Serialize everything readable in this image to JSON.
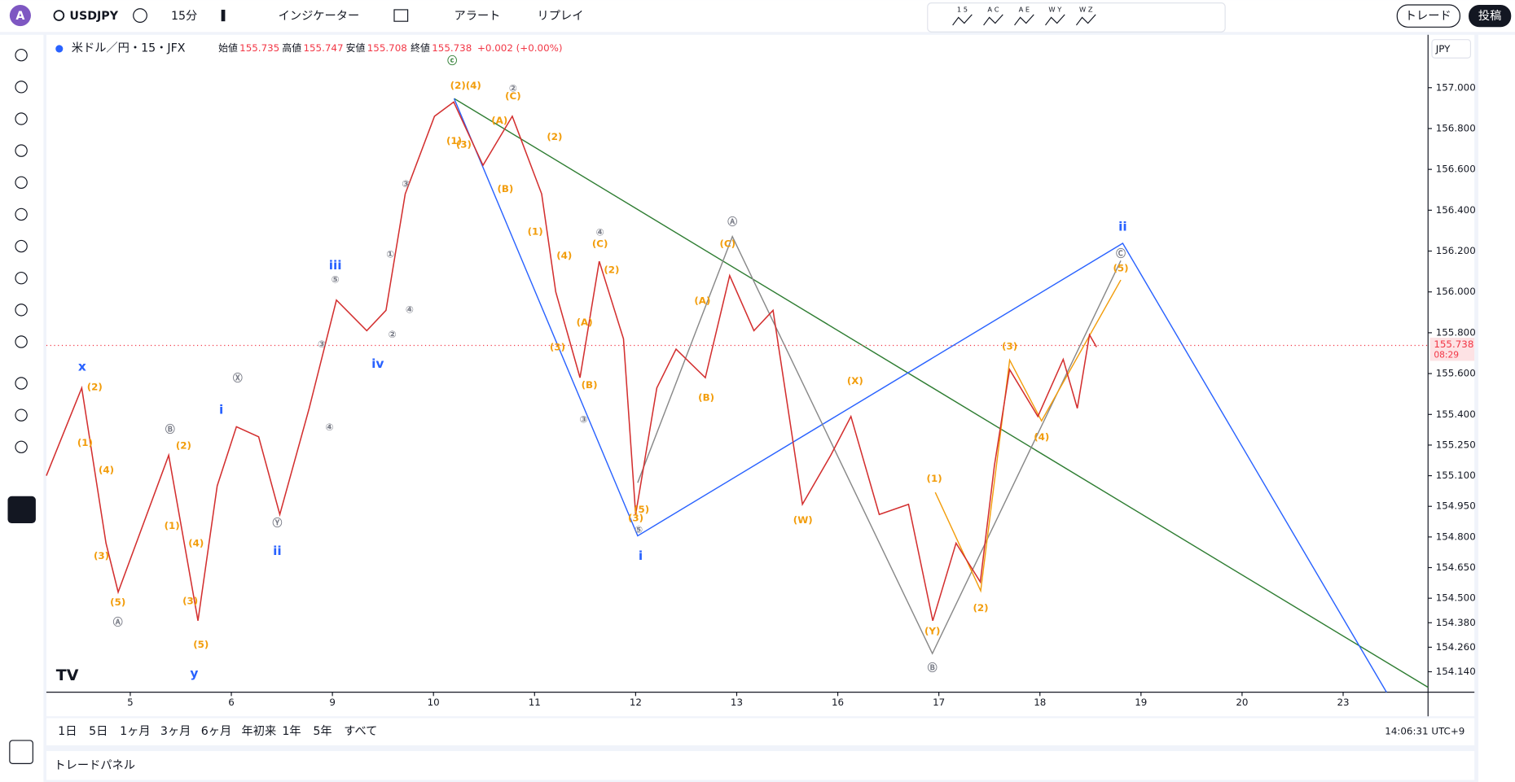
{
  "header": {
    "symbol": "USDJPY",
    "interval": "15分",
    "indicators": "インジケーター",
    "alert": "アラート",
    "replay": "リプレイ",
    "trade": "トレード",
    "publish": "投稿",
    "avatar": "A"
  },
  "legend": {
    "name": "米ドル／円・15・JFX",
    "open_label": "始値",
    "open": "155.735",
    "high_label": "高値",
    "high": "155.747",
    "low_label": "安値",
    "low": "155.708",
    "close_label": "終値",
    "close": "155.738",
    "change": "+0.002 (+0.00%)"
  },
  "drawing_tools": [
    "1 5",
    "A C",
    "A E",
    "W Y",
    "W Z"
  ],
  "chart_data": {
    "type": "line",
    "color": "#d32f2f",
    "x": [
      -0.83,
      -0.48,
      -0.24,
      -0.12,
      0.38,
      0.67,
      0.86,
      1.05,
      1.27,
      1.48,
      1.77,
      2.04,
      2.34,
      2.53,
      2.72,
      3.01,
      3.2,
      3.49,
      3.78,
      4.07,
      4.21,
      4.45,
      4.64,
      4.88,
      5.0,
      5.21,
      5.4,
      5.69,
      5.93,
      6.17,
      6.36,
      6.55,
      6.65,
      6.93,
      7.13,
      7.41,
      7.7,
      7.94,
      8.17,
      8.41,
      8.55,
      8.7,
      8.98,
      9.23,
      9.37,
      9.49,
      9.56
    ],
    "values": [
      155.1,
      155.53,
      154.77,
      154.53,
      155.2,
      154.39,
      155.05,
      155.34,
      155.29,
      154.91,
      155.43,
      155.96,
      155.81,
      155.91,
      156.48,
      156.86,
      156.93,
      156.62,
      156.86,
      156.48,
      156.0,
      155.58,
      156.15,
      155.77,
      154.91,
      155.53,
      155.72,
      155.58,
      156.08,
      155.81,
      155.91,
      155.29,
      154.96,
      155.2,
      155.39,
      154.91,
      154.96,
      154.39,
      154.77,
      154.58,
      155.15,
      155.62,
      155.39,
      155.67,
      155.43,
      155.79,
      155.73
    ],
    "xlim": [
      -0.83,
      12.84
    ],
    "xticks": [
      {
        "value": 0,
        "label": "5"
      },
      {
        "value": 1,
        "label": "6"
      },
      {
        "value": 2,
        "label": "9"
      },
      {
        "value": 3,
        "label": "10"
      },
      {
        "value": 4,
        "label": "11"
      },
      {
        "value": 5,
        "label": "12"
      },
      {
        "value": 6,
        "label": "13"
      },
      {
        "value": 7,
        "label": "16"
      },
      {
        "value": 8,
        "label": "17"
      },
      {
        "value": 9,
        "label": "18"
      },
      {
        "value": 10,
        "label": "19"
      },
      {
        "value": 11,
        "label": "20"
      },
      {
        "value": 12,
        "label": "23"
      }
    ],
    "ylim": [
      154.04,
      157.24
    ],
    "yticks": [
      {
        "value": 157,
        "label": "157.000"
      },
      {
        "value": 156.8,
        "label": "156.800"
      },
      {
        "value": 156.6,
        "label": "156.600"
      },
      {
        "value": 156.4,
        "label": "156.400"
      },
      {
        "value": 156.2,
        "label": "156.200"
      },
      {
        "value": 156,
        "label": "156.000"
      },
      {
        "value": 155.8,
        "label": "155.800"
      },
      {
        "value": 155.6,
        "label": "155.600"
      },
      {
        "value": 155.4,
        "label": "155.400"
      },
      {
        "value": 155.25,
        "label": "155.250"
      },
      {
        "value": 155.1,
        "label": "155.100"
      },
      {
        "value": 154.95,
        "label": "154.950"
      },
      {
        "value": 154.8,
        "label": "154.800"
      },
      {
        "value": 154.65,
        "label": "154.650"
      },
      {
        "value": 154.5,
        "label": "154.500"
      },
      {
        "value": 154.38,
        "label": "154.380"
      },
      {
        "value": 154.26,
        "label": "154.260"
      },
      {
        "value": 154.14,
        "label": "154.140"
      }
    ],
    "current_price": {
      "value": 155.738,
      "label": "155.738"
    },
    "countdown": "08:29",
    "currency": "JPY",
    "annotations": [
      "x",
      "(2)",
      "(1)",
      "(4)",
      "(3)",
      "(5)",
      "Ⓐ",
      "Ⓑ",
      "(2)",
      "(1)",
      "i",
      "Ⓧ",
      "(4)",
      "(3)",
      "(5)",
      "y",
      "ii",
      "Ⓨ",
      "③",
      "④",
      "⑤",
      "iii",
      "①",
      "②",
      "④",
      "③",
      "iv",
      "ⓒ",
      "(2)(4)",
      "(1)",
      "(3)",
      "(A)",
      "②",
      "(C)",
      "(B)",
      "(2)",
      "(1)",
      "(4)",
      "④",
      "(C)",
      "(2)",
      "(A)",
      "(B)",
      "(3)",
      "③",
      "(5)",
      "(3)",
      "⑤",
      "i",
      "Ⓐ",
      "(C)",
      "(A)",
      "(B)",
      "(X)",
      "(W)",
      "(1)",
      "(Y)",
      "Ⓑ",
      "(2)",
      "(3)",
      "(4)",
      "ii",
      "Ⓒ",
      "(5)"
    ]
  },
  "range_buttons": [
    "1日",
    "5日",
    "1ヶ月",
    "3ヶ月",
    "6ヶ月",
    "年初来",
    "1年",
    "5年",
    "すべて"
  ],
  "clock": "14:06:31 UTC+9",
  "panel": "トレードパネル"
}
